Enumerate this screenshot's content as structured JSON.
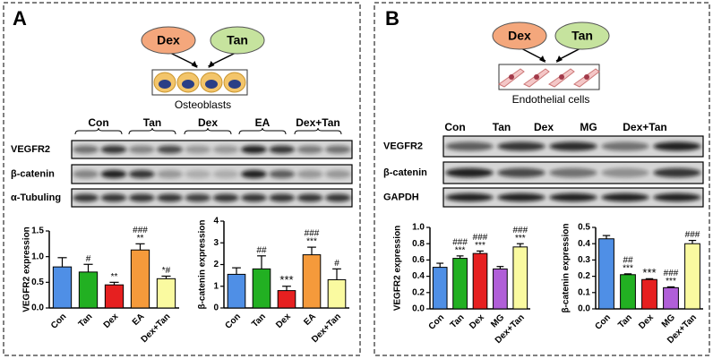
{
  "panels": [
    {
      "label": "A",
      "diagram": {
        "left": "Dex",
        "right": "Tan",
        "cells": "Osteoblasts"
      },
      "blot": {
        "groups": [
          "Con",
          "Tan",
          "Dex",
          "EA",
          "Dex+Tan"
        ],
        "rows": [
          "VEGFR2",
          "β-catenin",
          "α-Tubuling"
        ]
      }
    },
    {
      "label": "B",
      "diagram": {
        "left": "Dex",
        "right": "Tan",
        "cells": "Endothelial cells"
      },
      "blot": {
        "groups": [
          "Con",
          "Tan",
          "Dex",
          "MG",
          "Dex+Tan"
        ],
        "rows": [
          "VEGFR2",
          "β-catenin",
          "GAPDH"
        ]
      }
    }
  ],
  "chart_data": [
    {
      "type": "bar",
      "ylabel": "VEGFR2 expression",
      "categories": [
        "Con",
        "Tan",
        "Dex",
        "EA",
        "Dex+Tan"
      ],
      "values": [
        0.8,
        0.7,
        0.45,
        1.13,
        0.57
      ],
      "errors": [
        0.18,
        0.15,
        0.05,
        0.12,
        0.05
      ],
      "colors": [
        "#4f8fe6",
        "#22b022",
        "#e62020",
        "#f59a3b",
        "#fafaa0"
      ],
      "annotations": [
        null,
        [
          "#"
        ],
        [
          "**"
        ],
        [
          "###",
          "**"
        ],
        [
          "*#"
        ]
      ],
      "ylim": [
        0,
        1.5
      ],
      "yticks": [
        {
          "value": 0,
          "label": "0.0"
        },
        {
          "value": 0.5,
          "label": "0.5"
        },
        {
          "value": 1,
          "label": "1.0"
        },
        {
          "value": 1.5,
          "label": "1.5"
        }
      ]
    },
    {
      "type": "bar",
      "ylabel": "β-catenin expression",
      "categories": [
        "Con",
        "Tan",
        "Dex",
        "EA",
        "Dex+Tan"
      ],
      "values": [
        1.55,
        1.8,
        0.8,
        2.45,
        1.3
      ],
      "errors": [
        0.3,
        0.6,
        0.2,
        0.35,
        0.5
      ],
      "colors": [
        "#4f8fe6",
        "#22b022",
        "#e62020",
        "#f59a3b",
        "#fafaa0"
      ],
      "annotations": [
        null,
        [
          "##"
        ],
        [
          "***"
        ],
        [
          "###",
          "***"
        ],
        [
          "#"
        ]
      ],
      "ylim": [
        0,
        4
      ],
      "yticks": [
        0,
        1,
        2,
        3,
        4
      ]
    },
    {
      "type": "bar",
      "ylabel": "VEGFR2 expression",
      "categories": [
        "Con",
        "Tan",
        "Dex",
        "MG",
        "Dex+Tan"
      ],
      "values": [
        0.51,
        0.62,
        0.68,
        0.49,
        0.76
      ],
      "errors": [
        0.05,
        0.03,
        0.03,
        0.03,
        0.04
      ],
      "colors": [
        "#4f8fe6",
        "#22b022",
        "#e62020",
        "#b05fd8",
        "#fafaa0"
      ],
      "annotations": [
        null,
        [
          "###",
          "***"
        ],
        [
          "###",
          "***"
        ],
        null,
        [
          "###",
          "***"
        ]
      ],
      "ylim": [
        0,
        1
      ],
      "yticks": [
        {
          "value": 0,
          "label": "0.0"
        },
        {
          "value": 0.2,
          "label": "0.2"
        },
        {
          "value": 0.4,
          "label": "0.4"
        },
        {
          "value": 0.6,
          "label": "0.6"
        },
        {
          "value": 0.8,
          "label": "0.8"
        },
        {
          "value": 1,
          "label": "1.0"
        }
      ]
    },
    {
      "type": "bar",
      "ylabel": "β-catenin expression",
      "categories": [
        "Con",
        "Tan",
        "Dex",
        "MG",
        "Dex+Tan"
      ],
      "values": [
        0.43,
        0.21,
        0.18,
        0.13,
        0.4
      ],
      "errors": [
        0.02,
        0.005,
        0.005,
        0.005,
        0.02
      ],
      "colors": [
        "#4f8fe6",
        "#22b022",
        "#e62020",
        "#b05fd8",
        "#fafaa0"
      ],
      "annotations": [
        null,
        [
          "##",
          "***"
        ],
        [
          "***"
        ],
        [
          "###",
          "***"
        ],
        [
          "###"
        ]
      ],
      "ylim": [
        0,
        0.5
      ],
      "yticks": [
        {
          "value": 0,
          "label": "0.0"
        },
        {
          "value": 0.1,
          "label": "0.1"
        },
        {
          "value": 0.2,
          "label": "0.2"
        },
        {
          "value": 0.3,
          "label": "0.3"
        },
        {
          "value": 0.4,
          "label": "0.4"
        },
        {
          "value": 0.5,
          "label": "0.5"
        }
      ]
    }
  ]
}
